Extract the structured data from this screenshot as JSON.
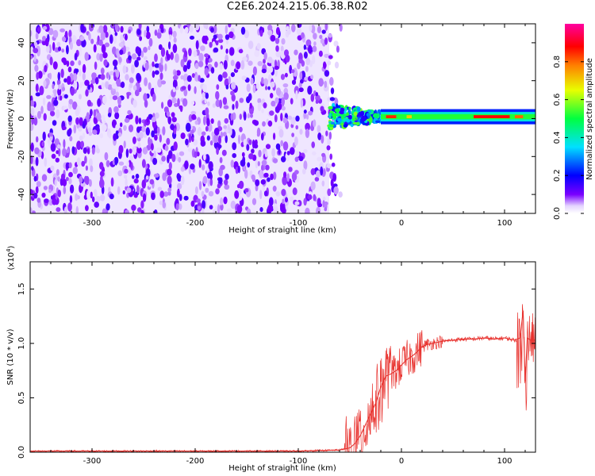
{
  "title": "C2E6.2024.215.06.38.R02",
  "colors": {
    "snr_line": "#e8322e",
    "colormap": [
      "#ffffff",
      "#7a00ff",
      "#0000ff",
      "#00ffff",
      "#00ff00",
      "#ffff00",
      "#ff0000",
      "#ff00ff"
    ]
  },
  "chart_data": [
    {
      "type": "heatmap",
      "title": "",
      "xlabel": "Height of straight line (km)",
      "ylabel": "Frequency (Hz)",
      "xlim": [
        -360,
        130
      ],
      "ylim": [
        -50,
        50
      ],
      "x_ticks": [
        -300,
        -200,
        -100,
        0,
        100
      ],
      "x_tick_labels": [
        "-300",
        "-200",
        "-100",
        "0",
        "100"
      ],
      "y_ticks": [
        -40,
        -20,
        0,
        20,
        40
      ],
      "y_tick_labels": [
        "-40",
        "-20",
        "0",
        "20",
        "40"
      ],
      "colorbar": {
        "label": "Normalized spectral amplitude",
        "range": [
          0,
          1
        ],
        "ticks": [
          0.0,
          0.2,
          0.4,
          0.6,
          0.8
        ],
        "tick_labels": [
          "0.0",
          "0.2",
          "0.4",
          "0.6",
          "0.8"
        ]
      },
      "regions": [
        {
          "name": "noise",
          "x_range": [
            -360,
            -70
          ],
          "freq_range": [
            -50,
            50
          ],
          "amplitude_range": [
            0.05,
            0.15
          ]
        },
        {
          "name": "transition",
          "x_range": [
            -70,
            -20
          ],
          "freq_range": [
            -8,
            8
          ],
          "amplitude_range": [
            0.15,
            0.6
          ]
        },
        {
          "name": "carrier",
          "x_range": [
            -20,
            130
          ],
          "freq_center": 1,
          "freq_halfwidth": 2.5,
          "amplitude_range": [
            0.4,
            1.0
          ]
        }
      ],
      "grid": false
    },
    {
      "type": "line",
      "title": "",
      "xlabel": "Height of straight line (km)",
      "ylabel": "SNR (10 * v/v)",
      "y_multiplier_label": "(x10",
      "y_multiplier_exponent": "4",
      "y_multiplier_close": ")",
      "xlim": [
        -360,
        130
      ],
      "ylim": [
        0,
        1.75
      ],
      "x_ticks": [
        -300,
        -200,
        -100,
        0,
        100
      ],
      "x_tick_labels": [
        "-300",
        "-200",
        "-100",
        "0",
        "100"
      ],
      "y_ticks": [
        0.0,
        0.5,
        1.0,
        1.5
      ],
      "y_tick_labels": [
        "0.0",
        "0.5",
        "1.0",
        "1.5"
      ],
      "series": [
        {
          "x": [
            -360,
            -300,
            -200,
            -100,
            -60,
            -50,
            -45,
            -40,
            -35,
            -30,
            -25,
            -20,
            -15,
            -10,
            -5,
            0,
            5,
            10,
            15,
            20,
            25,
            30,
            35,
            40,
            50,
            60,
            70,
            80,
            90,
            100,
            105,
            110,
            115,
            118,
            120,
            122,
            125,
            130
          ],
          "y": [
            0.01,
            0.01,
            0.01,
            0.01,
            0.02,
            0.04,
            0.08,
            0.15,
            0.25,
            0.35,
            0.45,
            0.6,
            0.7,
            0.72,
            0.75,
            0.8,
            0.85,
            0.88,
            0.92,
            0.97,
            0.99,
            1.0,
            1.01,
            1.02,
            1.03,
            1.04,
            1.04,
            1.05,
            1.04,
            1.05,
            1.04,
            1.03,
            1.05,
            1.3,
            0.65,
            1.05,
            1.03,
            1.03
          ]
        }
      ],
      "grid": false
    }
  ]
}
